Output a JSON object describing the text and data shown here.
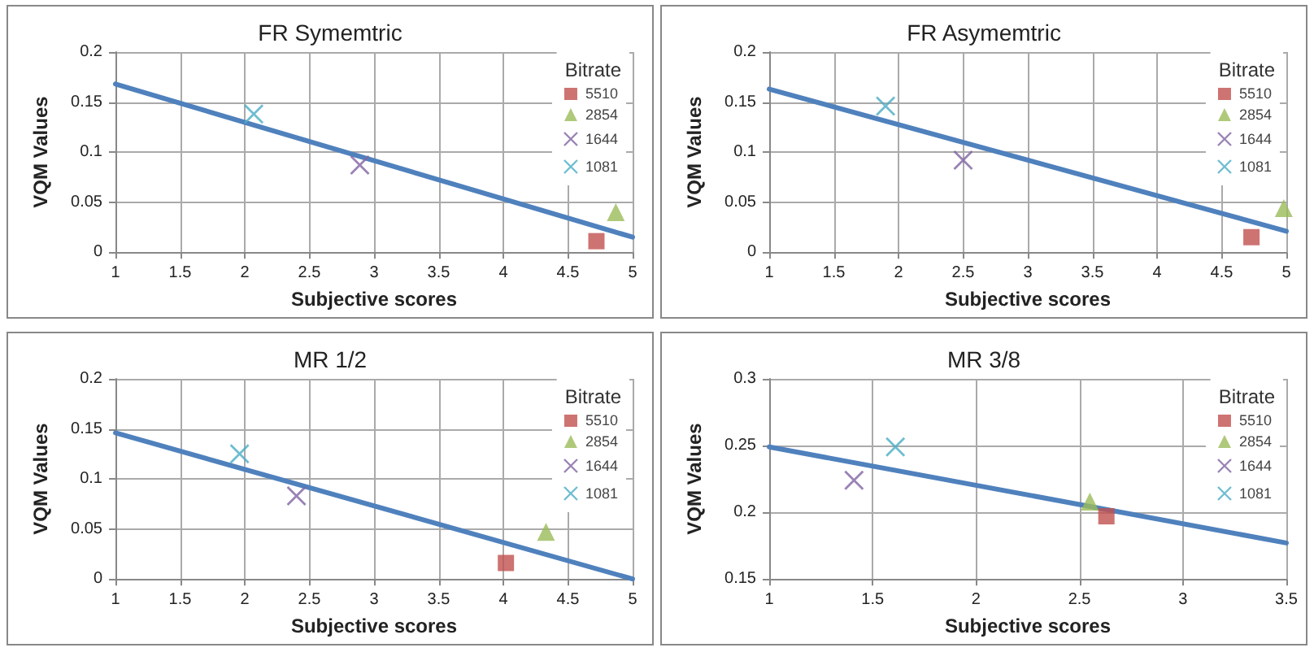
{
  "chart_data": [
    {
      "type": "scatter",
      "title": "FR Symemtric",
      "xlabel": "Subjective scores",
      "ylabel": "VQM Values",
      "legend_title": "Bitrate",
      "legend": "top right",
      "grid": true,
      "xlim": [
        1,
        5
      ],
      "xticks": [
        1,
        1.5,
        2,
        2.5,
        3,
        3.5,
        4,
        4.5,
        5
      ],
      "ylim": [
        0,
        0.2
      ],
      "yticks": [
        0,
        0.05,
        0.1,
        0.15,
        0.2
      ],
      "series": [
        {
          "name": "5510",
          "color": "#c0504d",
          "marker": "square",
          "x": [
            4.72
          ],
          "values": [
            0.011
          ]
        },
        {
          "name": "2854",
          "color": "#9bbb59",
          "marker": "triangle",
          "x": [
            4.87
          ],
          "values": [
            0.04
          ]
        },
        {
          "name": "1644",
          "color": "#8064a2",
          "marker": "cross",
          "x": [
            2.89
          ],
          "values": [
            0.087
          ]
        },
        {
          "name": "1081",
          "color": "#4bacc6",
          "marker": "cross",
          "x": [
            2.07
          ],
          "values": [
            0.138
          ]
        },
        {
          "type": "line",
          "color": "#4f81bd",
          "marker": "none",
          "line_style": "solid",
          "x": [
            1,
            5
          ],
          "values": [
            0.168,
            0.015
          ]
        }
      ]
    },
    {
      "type": "scatter",
      "title": "FR Asymemtric",
      "xlabel": "Subjective scores",
      "ylabel": "VQM Values",
      "legend_title": "Bitrate",
      "legend": "top right",
      "grid": true,
      "xlim": [
        1,
        5
      ],
      "xticks": [
        1,
        1.5,
        2,
        2.5,
        3,
        3.5,
        4,
        4.5,
        5
      ],
      "ylim": [
        0,
        0.2
      ],
      "yticks": [
        0,
        0.05,
        0.1,
        0.15,
        0.2
      ],
      "series": [
        {
          "name": "5510",
          "color": "#c0504d",
          "marker": "square",
          "x": [
            4.73
          ],
          "values": [
            0.015
          ]
        },
        {
          "name": "2854",
          "color": "#9bbb59",
          "marker": "triangle",
          "x": [
            4.98
          ],
          "values": [
            0.044
          ]
        },
        {
          "name": "1644",
          "color": "#8064a2",
          "marker": "cross",
          "x": [
            2.5
          ],
          "values": [
            0.092
          ]
        },
        {
          "name": "1081",
          "color": "#4bacc6",
          "marker": "cross",
          "x": [
            1.9
          ],
          "values": [
            0.146
          ]
        },
        {
          "type": "line",
          "color": "#4f81bd",
          "marker": "none",
          "line_style": "solid",
          "x": [
            1,
            5
          ],
          "values": [
            0.163,
            0.021
          ]
        }
      ]
    },
    {
      "type": "scatter",
      "title": "MR 1/2",
      "xlabel": "Subjective scores",
      "ylabel": "VQM Values",
      "legend_title": "Bitrate",
      "legend": "top right",
      "grid": true,
      "xlim": [
        1,
        5
      ],
      "xticks": [
        1,
        1.5,
        2,
        2.5,
        3,
        3.5,
        4,
        4.5,
        5
      ],
      "ylim": [
        0,
        0.2
      ],
      "yticks": [
        0,
        0.05,
        0.1,
        0.15,
        0.2
      ],
      "series": [
        {
          "name": "5510",
          "color": "#c0504d",
          "marker": "square",
          "x": [
            4.02
          ],
          "values": [
            0.016
          ]
        },
        {
          "name": "2854",
          "color": "#9bbb59",
          "marker": "triangle",
          "x": [
            4.33
          ],
          "values": [
            0.047
          ]
        },
        {
          "name": "1644",
          "color": "#8064a2",
          "marker": "cross",
          "x": [
            2.4
          ],
          "values": [
            0.083
          ]
        },
        {
          "name": "1081",
          "color": "#4bacc6",
          "marker": "cross",
          "x": [
            1.96
          ],
          "values": [
            0.125
          ]
        },
        {
          "type": "line",
          "color": "#4f81bd",
          "marker": "none",
          "line_style": "solid",
          "x": [
            1,
            5
          ],
          "values": [
            0.146,
            0
          ]
        }
      ]
    },
    {
      "type": "scatter",
      "title": "MR 3/8",
      "xlabel": "Subjective scores",
      "ylabel": "VQM Values",
      "legend_title": "Bitrate",
      "legend": "top right",
      "grid": true,
      "xlim": [
        1,
        3.5
      ],
      "xticks": [
        1,
        1.5,
        2,
        2.5,
        3,
        3.5
      ],
      "ylim": [
        0.15,
        0.3
      ],
      "yticks": [
        0.15,
        0.2,
        0.25,
        0.3
      ],
      "series": [
        {
          "name": "5510",
          "color": "#c0504d",
          "marker": "square",
          "x": [
            2.63
          ],
          "values": [
            0.197
          ]
        },
        {
          "name": "2854",
          "color": "#9bbb59",
          "marker": "triangle",
          "x": [
            2.55
          ],
          "values": [
            0.208
          ]
        },
        {
          "name": "1644",
          "color": "#8064a2",
          "marker": "cross",
          "x": [
            1.41
          ],
          "values": [
            0.224
          ]
        },
        {
          "name": "1081",
          "color": "#4bacc6",
          "marker": "cross",
          "x": [
            1.61
          ],
          "values": [
            0.249
          ]
        },
        {
          "type": "line",
          "color": "#4f81bd",
          "marker": "none",
          "line_style": "solid",
          "x": [
            1,
            3.5
          ],
          "values": [
            0.249,
            0.177
          ]
        }
      ]
    }
  ]
}
